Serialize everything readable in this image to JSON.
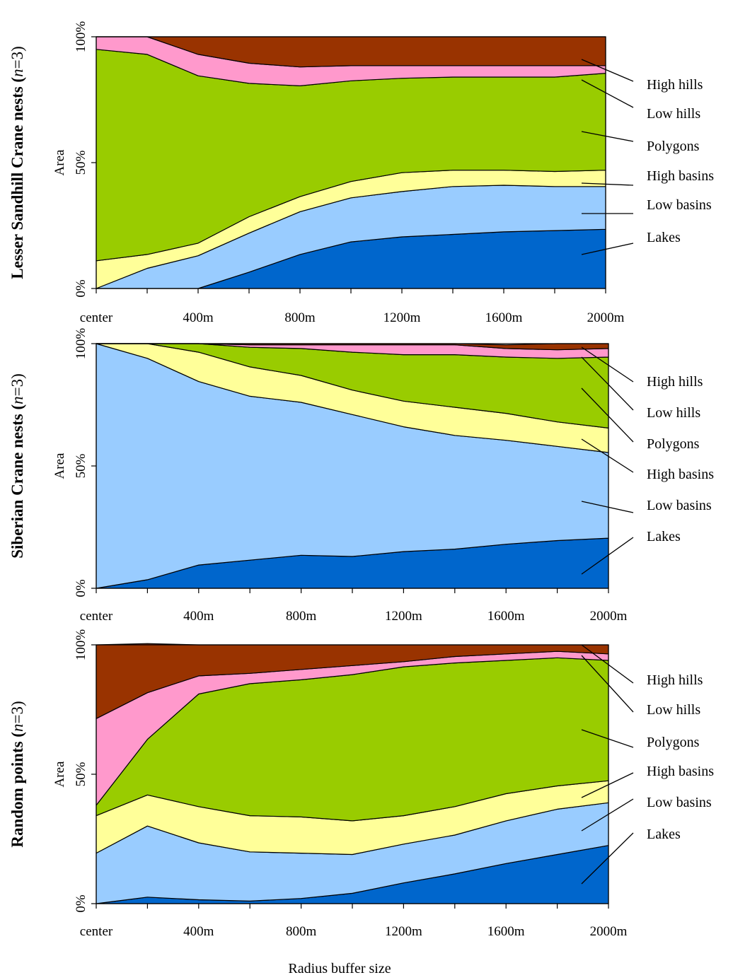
{
  "figure": {
    "xlabel": "Radius buffer size"
  },
  "chart_data": [
    {
      "type": "area",
      "stacked": true,
      "title_main": "Lesser Sandhill Crane nests (",
      "title_italic": "n",
      "title_tail": "=3)",
      "ylabel": "Area",
      "ylim": [
        0,
        100
      ],
      "yticks": [
        "0%",
        "50%",
        "100%"
      ],
      "x": [
        0,
        200,
        400,
        600,
        800,
        1000,
        1200,
        1400,
        1600,
        1800,
        2000
      ],
      "xtick_labels": [
        "center",
        "400m",
        "800m",
        "1200m",
        "1600m",
        "2000m"
      ],
      "series": [
        {
          "name": "Lakes",
          "color": "#0066CC",
          "values": [
            0,
            0,
            0,
            6.5,
            13.5,
            18.5,
            20.5,
            21.5,
            22.5,
            23.0,
            23.5
          ]
        },
        {
          "name": "Low basins",
          "color": "#99CCFF",
          "values": [
            0,
            8,
            13,
            15.5,
            17,
            17.5,
            18,
            19,
            18.5,
            17.5,
            17.0
          ]
        },
        {
          "name": "High basins",
          "color": "#FFFF99",
          "values": [
            11,
            5.5,
            5,
            6.5,
            6,
            6.5,
            7.5,
            6.5,
            6,
            6,
            6.5
          ]
        },
        {
          "name": "Polygons",
          "color": "#99CC00",
          "values": [
            84,
            79.5,
            66.5,
            53,
            44,
            40,
            37.5,
            37,
            37,
            37.5,
            38.5
          ]
        },
        {
          "name": "Low hills",
          "color": "#FF99CC",
          "values": [
            5,
            7,
            8.5,
            8,
            7.5,
            6,
            5,
            4.5,
            4.5,
            4.5,
            3.0
          ]
        },
        {
          "name": "High hills",
          "color": "#993300",
          "values": [
            0,
            0,
            7,
            10.5,
            12,
            11.5,
            11.5,
            11.5,
            11.5,
            11.5,
            11.5
          ]
        }
      ]
    },
    {
      "type": "area",
      "stacked": true,
      "title_main": "Siberian Crane nests (",
      "title_italic": "n",
      "title_tail": "=3)",
      "ylabel": "Area",
      "ylim": [
        0,
        100
      ],
      "yticks": [
        "0%",
        "50%",
        "100%"
      ],
      "x": [
        0,
        200,
        400,
        600,
        800,
        1000,
        1200,
        1400,
        1600,
        1800,
        2000
      ],
      "xtick_labels": [
        "center",
        "400m",
        "800m",
        "1200m",
        "1600m",
        "2000m"
      ],
      "series": [
        {
          "name": "Lakes",
          "color": "#0066CC",
          "values": [
            0,
            3.5,
            9.5,
            11.5,
            13.5,
            13,
            15,
            16,
            18,
            19.5,
            20.5
          ]
        },
        {
          "name": "Low basins",
          "color": "#99CCFF",
          "values": [
            100,
            90.5,
            75,
            67,
            62.5,
            58,
            51,
            46.5,
            42.5,
            38.5,
            35
          ]
        },
        {
          "name": "High basins",
          "color": "#FFFF99",
          "values": [
            0,
            6,
            12,
            12,
            11,
            10,
            10.5,
            11.5,
            11,
            10,
            10
          ]
        },
        {
          "name": "Polygons",
          "color": "#99CC00",
          "values": [
            0,
            0,
            3.5,
            8,
            11,
            15.5,
            19,
            21.5,
            23,
            26,
            29
          ]
        },
        {
          "name": "Low hills",
          "color": "#FF99CC",
          "values": [
            0,
            0,
            0,
            1,
            1.5,
            3,
            4,
            4,
            3.5,
            3.5,
            3.5
          ]
        },
        {
          "name": "High hills",
          "color": "#993300",
          "values": [
            0,
            0,
            0,
            0.5,
            0.5,
            0.5,
            0.5,
            0.5,
            1.5,
            2.5,
            2
          ]
        }
      ]
    },
    {
      "type": "area",
      "stacked": true,
      "title_main": "Random points (",
      "title_italic": "n",
      "title_tail": "=3)",
      "ylabel": "Area",
      "ylim": [
        0,
        100
      ],
      "yticks": [
        "0%",
        "50%",
        "100%"
      ],
      "x": [
        0,
        200,
        400,
        600,
        800,
        1000,
        1200,
        1400,
        1600,
        1800,
        2000
      ],
      "xtick_labels": [
        "center",
        "400m",
        "800m",
        "1200m",
        "1600m",
        "2000m"
      ],
      "series": [
        {
          "name": "Lakes",
          "color": "#0066CC",
          "values": [
            0,
            2.5,
            1.5,
            1,
            2,
            4,
            8,
            11.5,
            15.5,
            19,
            22.5
          ]
        },
        {
          "name": "Low basins",
          "color": "#99CCFF",
          "values": [
            19.5,
            27.5,
            22,
            19,
            17.5,
            15,
            15,
            15,
            16.5,
            17.5,
            16.5
          ]
        },
        {
          "name": "High basins",
          "color": "#FFFF99",
          "values": [
            14.5,
            12,
            14,
            14,
            14,
            13,
            11,
            11,
            10.5,
            9,
            8.5
          ]
        },
        {
          "name": "Polygons",
          "color": "#99CC00",
          "values": [
            4,
            21.5,
            43.5,
            51,
            53,
            56.5,
            57.5,
            55.5,
            51.5,
            49.5,
            46.5
          ]
        },
        {
          "name": "Low hills",
          "color": "#FF99CC",
          "values": [
            33.5,
            18,
            7,
            4,
            4,
            3.5,
            2,
            2.5,
            2.5,
            2.5,
            2.5
          ]
        },
        {
          "name": "High hills",
          "color": "#993300",
          "values": [
            28.5,
            19,
            12,
            11,
            9.5,
            8,
            6.5,
            4.5,
            3.5,
            2.5,
            3.5
          ]
        }
      ]
    }
  ]
}
